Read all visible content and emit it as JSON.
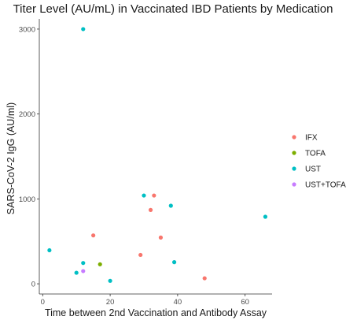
{
  "chart_data": {
    "type": "scatter",
    "title": "Titer Level (AU/mL) in Vaccinated IBD Patients by Medication",
    "xlabel": "Time between 2nd Vaccination and Antibody Assay",
    "ylabel": "SARS-CoV-2 IgG (AU/ml)",
    "xlim": [
      -1,
      68
    ],
    "ylim": [
      -120,
      3120
    ],
    "xticks": [
      0,
      20,
      40,
      60
    ],
    "yticks": [
      0,
      1000,
      2000,
      3000
    ],
    "grid": false,
    "legend_position": "right",
    "series": [
      {
        "name": "IFX",
        "color": "#F8766D",
        "points": [
          {
            "x": 15,
            "y": 570
          },
          {
            "x": 29,
            "y": 340
          },
          {
            "x": 32,
            "y": 870
          },
          {
            "x": 33,
            "y": 1040
          },
          {
            "x": 35,
            "y": 545
          },
          {
            "x": 48,
            "y": 65
          }
        ]
      },
      {
        "name": "TOFA",
        "color": "#7CAE00",
        "points": [
          {
            "x": 17,
            "y": 230
          }
        ]
      },
      {
        "name": "UST",
        "color": "#00BFC4",
        "points": [
          {
            "x": 12,
            "y": 3000
          },
          {
            "x": 2,
            "y": 395
          },
          {
            "x": 10,
            "y": 130
          },
          {
            "x": 12,
            "y": 245
          },
          {
            "x": 20,
            "y": 35
          },
          {
            "x": 30,
            "y": 1040
          },
          {
            "x": 38,
            "y": 920
          },
          {
            "x": 39,
            "y": 255
          },
          {
            "x": 66,
            "y": 790
          }
        ]
      },
      {
        "name": "UST+TOFA",
        "color": "#C77CFF",
        "points": [
          {
            "x": 12,
            "y": 150
          }
        ]
      }
    ]
  }
}
